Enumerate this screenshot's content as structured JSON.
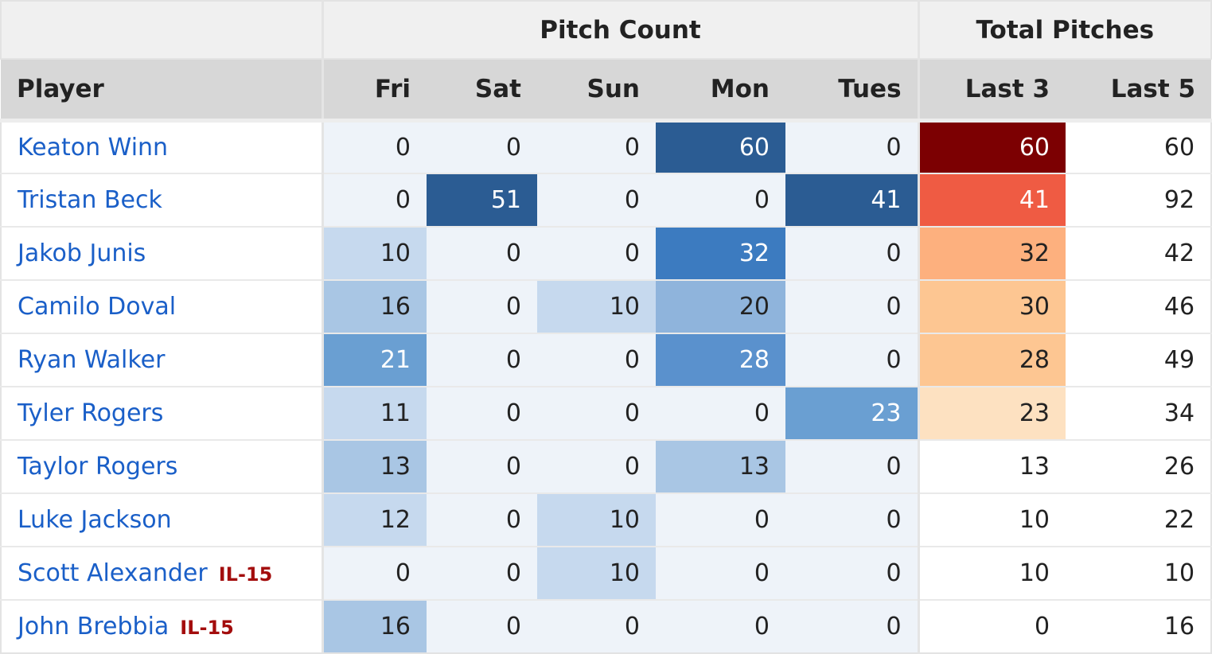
{
  "table": {
    "group_headers": {
      "pitch_count": "Pitch Count",
      "total_pitches": "Total Pitches"
    },
    "columns": [
      "Player",
      "Fri",
      "Sat",
      "Sun",
      "Mon",
      "Tues",
      "Last 3",
      "Last 5"
    ],
    "rows": [
      {
        "player": "Keaton Winn",
        "badge": "",
        "fri": "0",
        "sat": "0",
        "sun": "0",
        "mon": "60",
        "tues": "0",
        "last3": "60",
        "last5": "60"
      },
      {
        "player": "Tristan Beck",
        "badge": "",
        "fri": "0",
        "sat": "51",
        "sun": "0",
        "mon": "0",
        "tues": "41",
        "last3": "41",
        "last5": "92"
      },
      {
        "player": "Jakob Junis",
        "badge": "",
        "fri": "10",
        "sat": "0",
        "sun": "0",
        "mon": "32",
        "tues": "0",
        "last3": "32",
        "last5": "42"
      },
      {
        "player": "Camilo Doval",
        "badge": "",
        "fri": "16",
        "sat": "0",
        "sun": "10",
        "mon": "20",
        "tues": "0",
        "last3": "30",
        "last5": "46"
      },
      {
        "player": "Ryan Walker",
        "badge": "",
        "fri": "21",
        "sat": "0",
        "sun": "0",
        "mon": "28",
        "tues": "0",
        "last3": "28",
        "last5": "49"
      },
      {
        "player": "Tyler Rogers",
        "badge": "",
        "fri": "11",
        "sat": "0",
        "sun": "0",
        "mon": "0",
        "tues": "23",
        "last3": "23",
        "last5": "34"
      },
      {
        "player": "Taylor Rogers",
        "badge": "",
        "fri": "13",
        "sat": "0",
        "sun": "0",
        "mon": "13",
        "tues": "0",
        "last3": "13",
        "last5": "26"
      },
      {
        "player": "Luke Jackson",
        "badge": "",
        "fri": "12",
        "sat": "0",
        "sun": "10",
        "mon": "0",
        "tues": "0",
        "last3": "10",
        "last5": "22"
      },
      {
        "player": "Scott Alexander",
        "badge": "IL-15",
        "fri": "0",
        "sat": "0",
        "sun": "10",
        "mon": "0",
        "tues": "0",
        "last3": "10",
        "last5": "10"
      },
      {
        "player": "John Brebbia",
        "badge": "IL-15",
        "fri": "16",
        "sat": "0",
        "sun": "0",
        "mon": "0",
        "tues": "0",
        "last3": "0",
        "last5": "16"
      }
    ]
  },
  "colors": {
    "link": "#1a5fc8",
    "injury_badge": "#a30d0d",
    "day_base": "#eef3f9",
    "blue_scale": [
      {
        "min": 10,
        "color": "#c6d9ee"
      },
      {
        "min": 13,
        "color": "#a9c6e4"
      },
      {
        "min": 20,
        "color": "#8fb4dc"
      },
      {
        "min": 21,
        "color": "#6a9fd2"
      },
      {
        "min": 25,
        "color": "#5a91cd"
      },
      {
        "min": 30,
        "color": "#3c7bc0"
      },
      {
        "min": 40,
        "color": "#2b5c93"
      }
    ],
    "red_scale": [
      {
        "min": 20,
        "color": "#fde1c1"
      },
      {
        "min": 25,
        "color": "#fdc692"
      },
      {
        "min": 31,
        "color": "#fdb07e"
      },
      {
        "min": 35,
        "color": "#ef5b43"
      },
      {
        "min": 50,
        "color": "#7c0002"
      }
    ]
  }
}
